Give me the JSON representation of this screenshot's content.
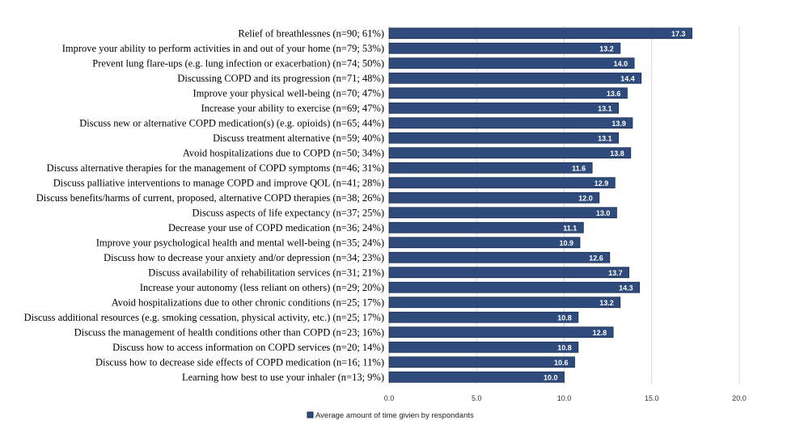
{
  "chart_data": {
    "type": "bar",
    "orientation": "horizontal",
    "categories": [
      "Relief of breathlessnes (n=90; 61%)",
      "Improve your ability to perform activities in and out of your home (n=79; 53%)",
      "Prevent lung flare-ups (e.g. lung infection or exacerbation) (n=74; 50%)",
      "Discussing COPD and its progression (n=71; 48%)",
      "Improve your physical well-being (n=70; 47%)",
      "Increase your ability to exercise (n=69; 47%)",
      "Discuss new or alternative COPD medication(s) (e.g. opioids) (n=65; 44%)",
      "Discuss treatment alternative (n=59; 40%)",
      "Avoid hospitalizations due to COPD (n=50; 34%)",
      "Discuss alternative therapies for the management of COPD symptoms (n=46; 31%)",
      "Discuss palliative interventions to manage COPD and improve QOL (n=41; 28%)",
      "Discuss benefits/harms of current, proposed, alternative COPD therapies (n=38; 26%)",
      "Discuss aspects of life expectancy (n=37; 25%)",
      "Decrease your use of COPD medication  (n=36; 24%)",
      "Improve your psychological health and mental well-being (n=35; 24%)",
      "Discuss how to decrease your anxiety and/or depression  (n=34; 23%)",
      "Discuss availability of rehabilitation services (n=31; 21%)",
      "Increase your autonomy (less reliant on others)  (n=29; 20%)",
      "Avoid hospitalizations due to other chronic conditions  (n=25; 17%)",
      "Discuss additional resources (e.g. smoking cessation, physical activity, etc.) (n=25; 17%)",
      "Discuss the management of health conditions other than COPD (n=23; 16%)",
      "Discuss how to access information on COPD services  (n=20; 14%)",
      "Discuss how to decrease side effects of COPD medication (n=16; 11%)",
      "Learning how best to use your inhaler (n=13; 9%)"
    ],
    "series": [
      {
        "name": "Average amount of time givien by respondants",
        "values": [
          17.3,
          13.2,
          14.0,
          14.4,
          13.6,
          13.1,
          13.9,
          13.1,
          13.8,
          11.6,
          12.9,
          12.0,
          13.0,
          11.1,
          10.9,
          12.6,
          13.7,
          14.3,
          13.2,
          10.8,
          12.8,
          10.8,
          10.6,
          10.0
        ],
        "value_labels": [
          "17.3",
          "13.2",
          "14.0",
          "14.4",
          "13.6",
          "13.1",
          "13.9",
          "13.1",
          "13.8",
          "11.6",
          "12.9",
          "12.0",
          "13.0",
          "11.1",
          "10.9",
          "12.6",
          "13.7",
          "14.3",
          "13.2",
          "10.8",
          "12.8",
          "10.8",
          "10.6",
          "10.0"
        ]
      }
    ],
    "x_ticks": [
      "0.0",
      "5.0",
      "10.0",
      "15.0",
      "20.0"
    ],
    "xlim": [
      0,
      20
    ],
    "grid": true,
    "legend_placement": "bottom",
    "colors": {
      "bar": "#2F4B7C",
      "bar_border": "#1B2C4F",
      "grid": "#D9D9D9"
    }
  }
}
